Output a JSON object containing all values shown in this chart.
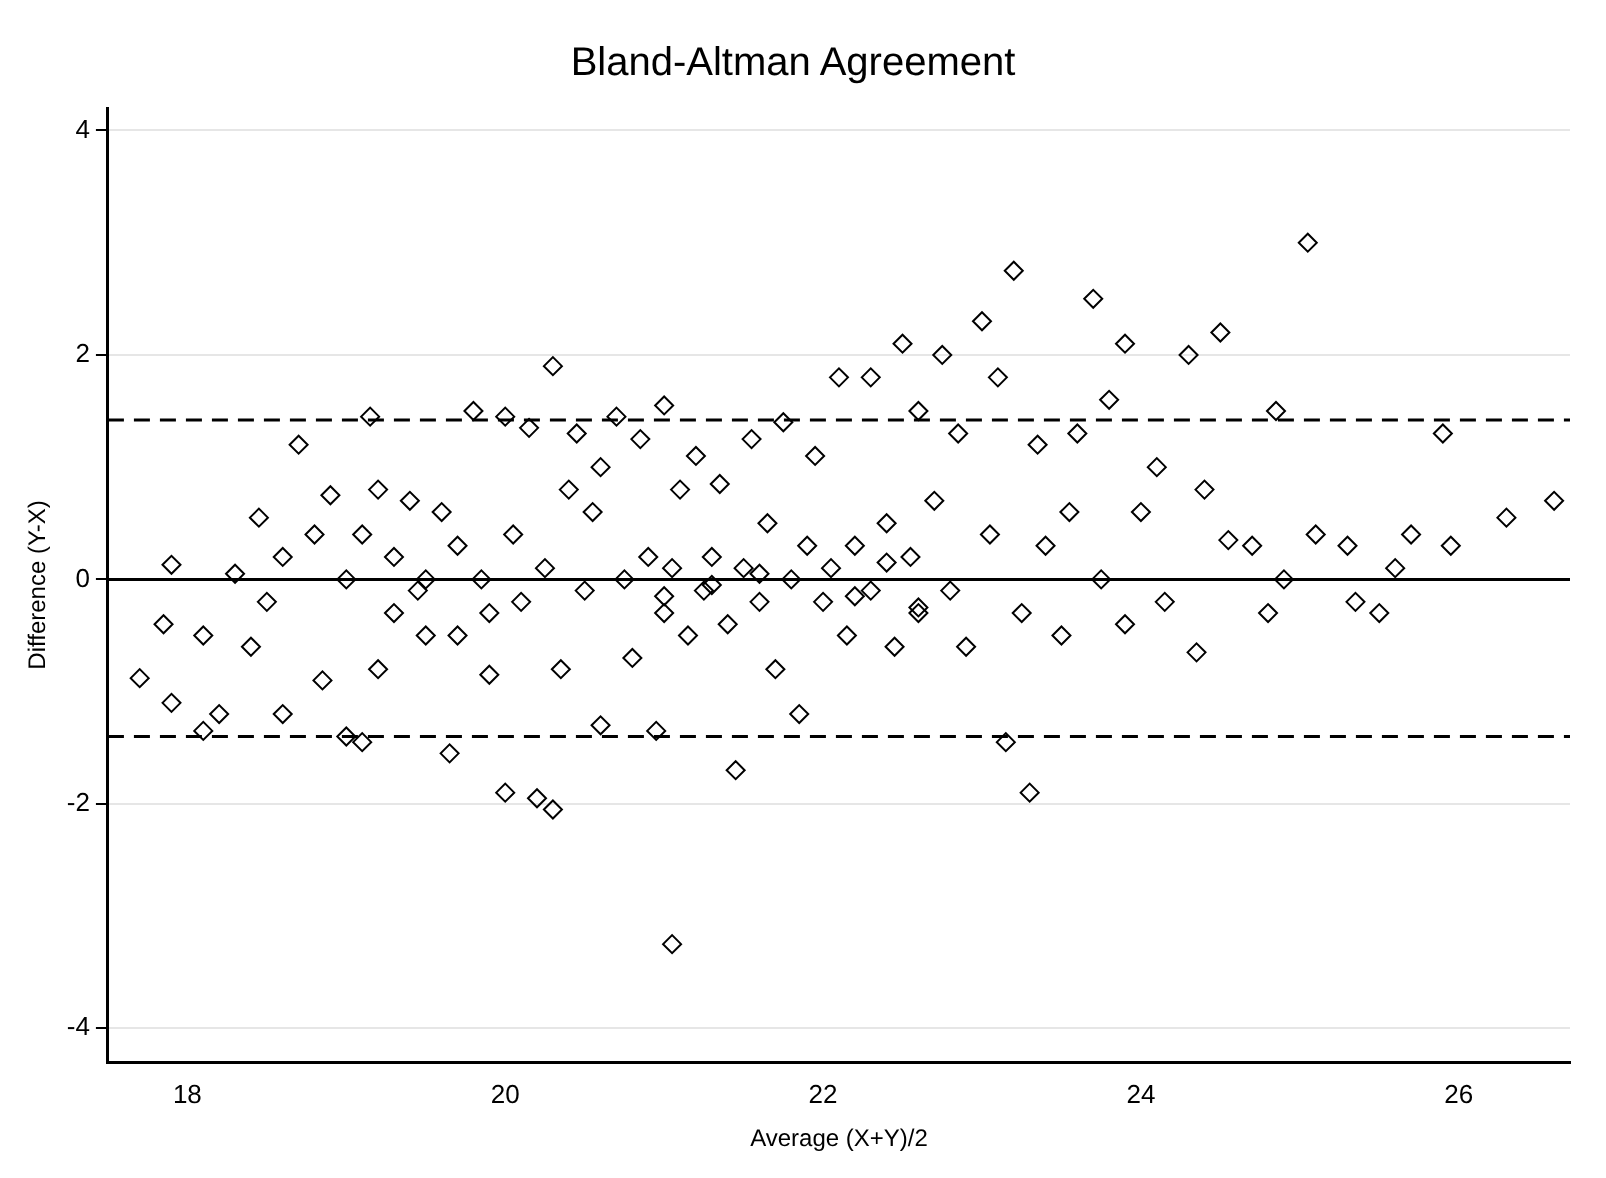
{
  "chart_data": {
    "type": "scatter",
    "title": "Bland-Altman Agreement",
    "xlabel": "Average (X+Y)/2",
    "ylabel": "Difference (Y-X)",
    "xlim": [
      17.5,
      26.7
    ],
    "ylim": [
      -4.3,
      4.2
    ],
    "xticks": [
      18,
      20,
      22,
      24,
      26
    ],
    "yticks": [
      -4,
      -2,
      0,
      2,
      4
    ],
    "grid": "y",
    "marker": "diamond",
    "ref_lines": [
      {
        "axis": "y",
        "value": 1.42,
        "line_style": "dashed",
        "color": "#000000"
      },
      {
        "axis": "y",
        "value": 0,
        "line_style": "solid",
        "color": "#000000"
      },
      {
        "axis": "y",
        "value": -1.4,
        "line_style": "dashed",
        "color": "#000000"
      }
    ],
    "series": [
      {
        "color": "#000000",
        "x": [
          17.7,
          17.9,
          17.85,
          17.9,
          18.1,
          18.1,
          18.2,
          18.3,
          18.4,
          18.45,
          18.5,
          18.6,
          18.6,
          18.7,
          18.8,
          18.85,
          18.9,
          19.0,
          19.0,
          19.1,
          19.15,
          19.1,
          19.2,
          19.2,
          19.3,
          19.3,
          19.4,
          19.45,
          19.5,
          19.5,
          19.6,
          19.65,
          19.7,
          19.7,
          19.8,
          19.85,
          19.9,
          19.9,
          20.0,
          20.0,
          20.05,
          20.1,
          20.15,
          20.2,
          20.25,
          20.3,
          20.3,
          20.35,
          20.4,
          20.45,
          20.5,
          20.55,
          20.6,
          20.6,
          20.7,
          20.75,
          20.8,
          20.85,
          20.9,
          20.95,
          21.0,
          21.0,
          21.05,
          21.05,
          21.1,
          21.15,
          21.2,
          21.25,
          21.3,
          21.35,
          21.4,
          21.45,
          21.5,
          21.55,
          21.6,
          21.65,
          21.7,
          21.75,
          21.8,
          21.85,
          21.9,
          21.95,
          22.0,
          22.05,
          22.1,
          22.15,
          22.2,
          22.3,
          22.3,
          22.4,
          22.45,
          22.5,
          22.55,
          22.6,
          22.6,
          22.7,
          22.75,
          22.8,
          22.85,
          22.9,
          23.0,
          23.05,
          23.1,
          23.15,
          23.2,
          23.25,
          23.3,
          23.35,
          23.4,
          23.5,
          23.55,
          23.6,
          23.7,
          23.75,
          23.8,
          23.9,
          23.9,
          24.0,
          24.1,
          24.15,
          24.3,
          24.35,
          24.4,
          24.5,
          24.55,
          24.7,
          24.8,
          24.85,
          24.9,
          25.05,
          25.1,
          25.3,
          25.35,
          25.5,
          25.6,
          25.7,
          25.9,
          25.95,
          26.3,
          26.6,
          21.3,
          21.6,
          22.2,
          22.6,
          21.0,
          22.4
        ],
        "values": [
          -0.88,
          -1.1,
          -0.4,
          0.13,
          -0.5,
          -1.35,
          -1.2,
          0.05,
          -0.6,
          0.55,
          -0.2,
          -1.2,
          0.2,
          1.2,
          0.4,
          -0.9,
          0.75,
          0.0,
          -1.4,
          0.4,
          1.45,
          -1.45,
          -0.8,
          0.8,
          0.2,
          -0.3,
          0.7,
          -0.1,
          0.0,
          -0.5,
          0.6,
          -1.55,
          0.3,
          -0.5,
          1.5,
          0.0,
          -0.3,
          -0.85,
          1.45,
          -1.9,
          0.4,
          -0.2,
          1.35,
          -1.95,
          0.1,
          1.9,
          -2.05,
          -0.8,
          0.8,
          1.3,
          -0.1,
          0.6,
          -1.3,
          1.0,
          1.45,
          0.0,
          -0.7,
          1.25,
          0.2,
          -1.35,
          1.55,
          -0.3,
          0.1,
          -3.25,
          0.8,
          -0.5,
          1.1,
          -0.1,
          0.2,
          0.85,
          -0.4,
          -1.7,
          0.1,
          1.25,
          -0.2,
          0.5,
          -0.8,
          1.4,
          0.0,
          -1.2,
          0.3,
          1.1,
          -0.2,
          0.1,
          1.8,
          -0.5,
          0.3,
          1.8,
          -0.1,
          0.5,
          -0.6,
          2.1,
          0.2,
          -0.3,
          1.5,
          0.7,
          2.0,
          -0.1,
          1.3,
          -0.6,
          2.3,
          0.4,
          1.8,
          -1.45,
          2.75,
          -0.3,
          -1.9,
          1.2,
          0.3,
          -0.5,
          0.6,
          1.3,
          2.5,
          0.0,
          1.6,
          2.1,
          -0.4,
          0.6,
          1.0,
          -0.2,
          2.0,
          -0.65,
          0.8,
          2.2,
          0.35,
          0.3,
          -0.3,
          1.5,
          0.0,
          3.0,
          0.4,
          0.3,
          -0.2,
          -0.3,
          0.1,
          0.4,
          1.3,
          0.3,
          0.55,
          0.7,
          -0.05,
          0.05,
          -0.15,
          -0.25,
          -0.15,
          0.15
        ]
      }
    ]
  }
}
